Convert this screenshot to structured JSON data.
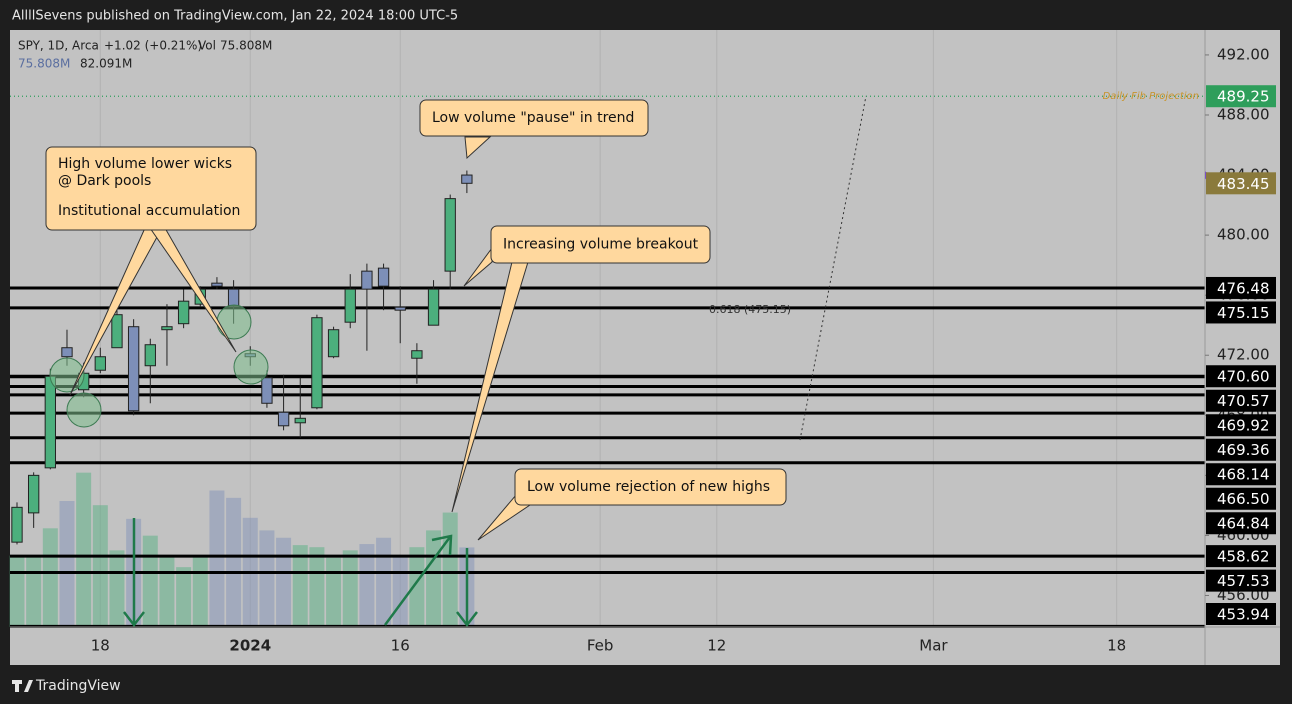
{
  "header": "AllllSevens published on TradingView.com, Jan 22, 2024 18:00 UTC-5",
  "footer": "TradingView",
  "chart_data": {
    "type": "candlestick",
    "symbol": "SPY, 1D, Arca",
    "change": "+1.02 (+0.21%)",
    "volume_label": "Vol",
    "volume_last": "75.808M",
    "volume_row": [
      "75.808M",
      "82.091M"
    ],
    "x": [
      0,
      1,
      2,
      3,
      4,
      5,
      6,
      7,
      8,
      9,
      10,
      11,
      12,
      13,
      14,
      15,
      16,
      17,
      18,
      19,
      20,
      21,
      22,
      23,
      24,
      25,
      26,
      27
    ],
    "open": [
      459.55,
      461.5,
      464.5,
      472.5,
      469.7,
      471.0,
      472.5,
      473.9,
      471.3,
      473.7,
      474.1,
      475.4,
      476.8,
      476.4,
      472.1,
      470.5,
      468.2,
      467.5,
      468.5,
      471.9,
      474.2,
      477.6,
      477.8,
      475.2,
      471.8,
      474.0,
      477.6,
      484.0
    ],
    "high": [
      462.2,
      464.2,
      471.1,
      473.7,
      471.5,
      472.5,
      475.0,
      474.4,
      473.1,
      475.4,
      476.4,
      476.6,
      477.2,
      477.0,
      472.6,
      471.0,
      470.7,
      470.5,
      474.7,
      473.9,
      477.4,
      478.1,
      478.1,
      476.6,
      472.8,
      477.0,
      482.7,
      484.3
    ],
    "low": [
      459.4,
      460.5,
      464.4,
      471.3,
      469.2,
      470.8,
      472.5,
      468.0,
      468.8,
      471.3,
      473.8,
      475.2,
      476.4,
      474.1,
      471.3,
      468.5,
      467.0,
      466.5,
      468.4,
      471.8,
      473.8,
      472.3,
      475.0,
      472.8,
      470.1,
      474.0,
      476.4,
      482.8
    ],
    "close": [
      461.87,
      464.0,
      470.6,
      471.9,
      470.8,
      471.9,
      474.7,
      468.3,
      472.7,
      473.9,
      475.6,
      476.4,
      476.6,
      475.3,
      471.9,
      468.8,
      467.3,
      467.8,
      474.5,
      473.7,
      476.4,
      476.4,
      476.6,
      475.0,
      472.3,
      476.4,
      482.43,
      483.45
    ],
    "volume": [
      68,
      68,
      94,
      120,
      147,
      116,
      73,
      103,
      87,
      67,
      57,
      68,
      130,
      123,
      104,
      92,
      85,
      78,
      76,
      66,
      73,
      79,
      85,
      68,
      76,
      92,
      109,
      75.808
    ],
    "up_color": "#4caf7d",
    "down_color": "#7d8fb8",
    "xlim": [
      -0.42,
      71.3
    ],
    "xticks": [
      {
        "value": 5,
        "label": "18"
      },
      {
        "value": 14,
        "label": "2024"
      },
      {
        "value": 23,
        "label": "16"
      },
      {
        "value": 35,
        "label": "Feb"
      },
      {
        "value": 42,
        "label": "12"
      },
      {
        "value": 55,
        "label": "Mar"
      },
      {
        "value": 66,
        "label": "18"
      }
    ],
    "ylim": [
      453.9,
      493.66
    ],
    "yticks": [
      {
        "value": 492,
        "label": "492.00"
      },
      {
        "value": 488,
        "label": "488.00"
      },
      {
        "value": 484,
        "label": "484.00"
      },
      {
        "value": 480,
        "label": "480.00"
      },
      {
        "value": 476,
        "label": "476.00"
      },
      {
        "value": 472,
        "label": "472.00"
      },
      {
        "value": 468,
        "label": "468.00"
      },
      {
        "value": 464,
        "label": "464.00"
      },
      {
        "value": 460,
        "label": "460.00"
      },
      {
        "value": 456,
        "label": "456.00"
      }
    ],
    "vol_ylim": [
      0,
      160
    ],
    "levels": [
      {
        "value": 476.48,
        "label": "476.48"
      },
      {
        "value": 475.15,
        "label": "475.15"
      },
      {
        "value": 470.6,
        "label": "470.60"
      },
      {
        "value": 470.57,
        "label": "470.57"
      },
      {
        "value": 469.92,
        "label": "469.92"
      },
      {
        "value": 469.36,
        "label": "469.36"
      },
      {
        "value": 468.14,
        "label": "468.14"
      },
      {
        "value": 466.5,
        "label": "466.50"
      },
      {
        "value": 464.84,
        "label": "464.84"
      },
      {
        "value": 458.62,
        "label": "458.62"
      },
      {
        "value": 457.53,
        "label": "457.53"
      },
      {
        "value": 453.94,
        "label": "453.94"
      }
    ],
    "fib": {
      "value": 489.25,
      "label": "489.25",
      "name": "Daily Fib Projection",
      "color": "#2e9e5b"
    },
    "last_price": {
      "value": 483.45,
      "label": "483.45",
      "color": "#8a7a3c"
    },
    "fib_text": "0.618 (475.15)",
    "annotations": [
      {
        "lines": [
          "High volume lower wicks",
          "@ Dark pools",
          "Institutional accumulation"
        ]
      },
      {
        "lines": [
          "Low volume \"pause\" in trend"
        ]
      },
      {
        "lines": [
          "Increasing volume breakout"
        ]
      },
      {
        "lines": [
          "Low volume rejection of new highs"
        ]
      }
    ]
  }
}
